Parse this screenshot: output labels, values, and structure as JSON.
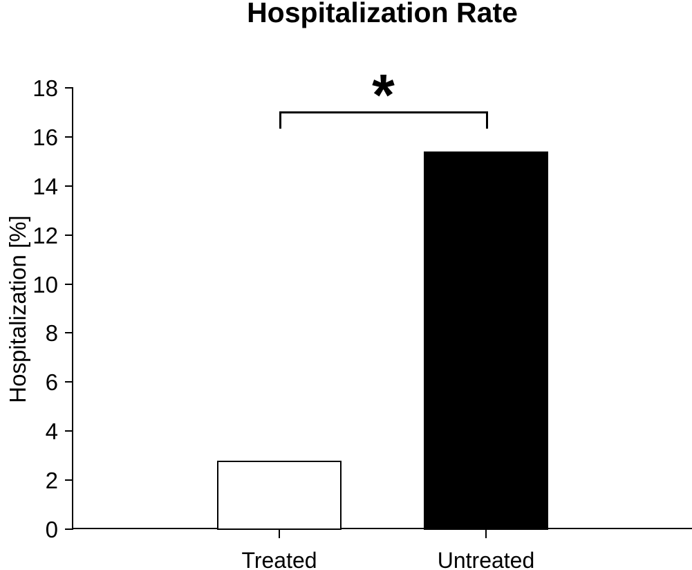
{
  "figure": {
    "background_color": "#ffffff",
    "foreground_color": "#000000"
  },
  "chart_data": {
    "type": "bar",
    "title": "Hospitalization Rate",
    "categories": [
      "Treated",
      "Untreated"
    ],
    "values": [
      2.8,
      15.4
    ],
    "bar_colors": [
      "#ffffff",
      "#000000"
    ],
    "bar_border_color": "#000000",
    "xlabel": "",
    "ylabel": "Hospitalization [%]",
    "ylim": [
      0,
      18
    ],
    "ytick_interval": 2,
    "ytick_labels": [
      "0",
      "2",
      "4",
      "6",
      "8",
      "10",
      "12",
      "14",
      "16",
      "18"
    ],
    "grid": false,
    "legend": false,
    "annotation": {
      "symbol": "*",
      "between": [
        "Treated",
        "Untreated"
      ],
      "meaning": "significant difference bracket"
    }
  }
}
